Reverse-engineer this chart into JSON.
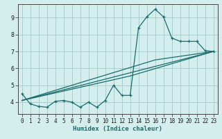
{
  "title": "",
  "xlabel": "Humidex (Indice chaleur)",
  "ylabel": "",
  "background_color": "#d4eeee",
  "grid_color": "#aacccc",
  "line_color": "#1a6b6b",
  "xlim": [
    -0.5,
    23.5
  ],
  "ylim": [
    3.3,
    9.8
  ],
  "xticks": [
    0,
    1,
    2,
    3,
    4,
    5,
    6,
    7,
    8,
    9,
    10,
    11,
    12,
    13,
    14,
    15,
    16,
    17,
    18,
    19,
    20,
    21,
    22,
    23
  ],
  "yticks": [
    4,
    5,
    6,
    7,
    8,
    9
  ],
  "curve1_x": [
    0,
    1,
    2,
    3,
    4,
    5,
    6,
    7,
    8,
    9,
    10,
    11,
    12,
    13,
    14,
    15,
    16,
    17,
    18,
    19,
    20,
    21,
    22,
    23
  ],
  "curve1_y": [
    4.5,
    3.9,
    3.75,
    3.7,
    4.05,
    4.1,
    4.0,
    3.7,
    4.0,
    3.7,
    4.1,
    5.0,
    4.4,
    4.4,
    8.4,
    9.05,
    9.5,
    9.05,
    7.8,
    7.6,
    7.6,
    7.6,
    7.05,
    7.0
  ],
  "curve2_x": [
    0,
    23
  ],
  "curve2_y": [
    4.1,
    7.0
  ],
  "curve3_x": [
    0,
    13,
    23
  ],
  "curve3_y": [
    4.1,
    5.55,
    7.0
  ],
  "curve4_x": [
    0,
    16,
    23
  ],
  "curve4_y": [
    4.1,
    6.5,
    7.0
  ]
}
